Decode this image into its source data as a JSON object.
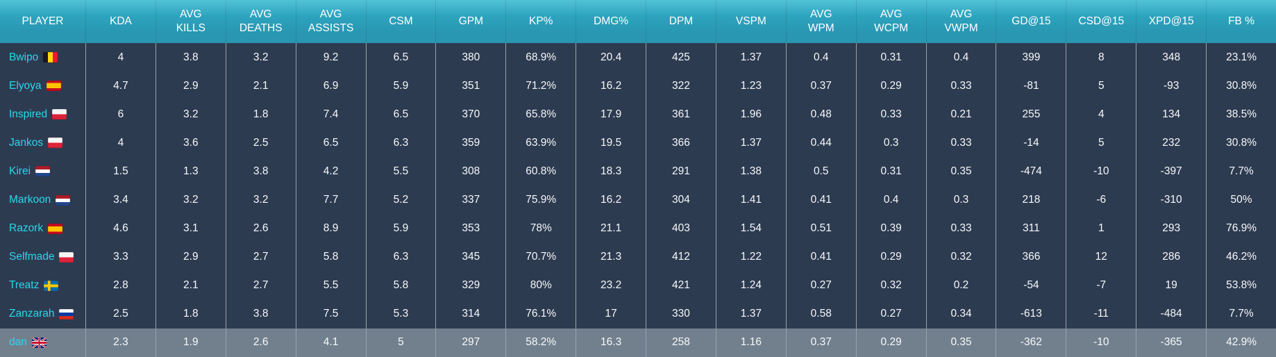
{
  "colors": {
    "header_teal_top": "#52c2d6",
    "header_teal_bottom": "#2a96b0",
    "row_background": "#2d3b51",
    "highlight_row_background": "#72808e",
    "cell_text": "#f7f9fa",
    "player_name_cyan": "#2bd7e9",
    "column_divider": "#98a1ab"
  },
  "table": {
    "columns": [
      {
        "key": "player",
        "label": "PLAYER"
      },
      {
        "key": "kda",
        "label": "KDA"
      },
      {
        "key": "avg_kills",
        "label": "AVG\nKILLS"
      },
      {
        "key": "avg_deaths",
        "label": "AVG\nDEATHS"
      },
      {
        "key": "avg_assists",
        "label": "AVG\nASSISTS"
      },
      {
        "key": "csm",
        "label": "CSM"
      },
      {
        "key": "gpm",
        "label": "GPM"
      },
      {
        "key": "kp_pct",
        "label": "KP%"
      },
      {
        "key": "dmg_pct",
        "label": "DMG%"
      },
      {
        "key": "dpm",
        "label": "DPM"
      },
      {
        "key": "vspm",
        "label": "VSPM"
      },
      {
        "key": "avg_wpm",
        "label": "AVG\nWPM"
      },
      {
        "key": "avg_wcpm",
        "label": "AVG\nWCPM"
      },
      {
        "key": "avg_vwpm",
        "label": "AVG\nVWPM"
      },
      {
        "key": "gd_at_15",
        "label": "GD@15"
      },
      {
        "key": "csd_at_15",
        "label": "CSD@15"
      },
      {
        "key": "xpd_at_15",
        "label": "XPD@15"
      },
      {
        "key": "fb_pct",
        "label": "FB %"
      }
    ],
    "rows": [
      {
        "player": "Bwipo",
        "country": "belgium",
        "highlighted": false,
        "values": [
          "4",
          "3.8",
          "3.2",
          "9.2",
          "6.5",
          "380",
          "68.9%",
          "20.4",
          "425",
          "1.37",
          "0.4",
          "0.31",
          "0.4",
          "399",
          "8",
          "348",
          "23.1%"
        ]
      },
      {
        "player": "Elyoya",
        "country": "spain",
        "highlighted": false,
        "values": [
          "4.7",
          "2.9",
          "2.1",
          "6.9",
          "5.9",
          "351",
          "71.2%",
          "16.2",
          "322",
          "1.23",
          "0.37",
          "0.29",
          "0.33",
          "-81",
          "5",
          "-93",
          "30.8%"
        ]
      },
      {
        "player": "Inspired",
        "country": "poland",
        "highlighted": false,
        "values": [
          "6",
          "3.2",
          "1.8",
          "7.4",
          "6.5",
          "370",
          "65.8%",
          "17.9",
          "361",
          "1.96",
          "0.48",
          "0.33",
          "0.21",
          "255",
          "4",
          "134",
          "38.5%"
        ]
      },
      {
        "player": "Jankos",
        "country": "poland",
        "highlighted": false,
        "values": [
          "4",
          "3.6",
          "2.5",
          "6.5",
          "6.3",
          "359",
          "63.9%",
          "19.5",
          "366",
          "1.37",
          "0.44",
          "0.3",
          "0.33",
          "-14",
          "5",
          "232",
          "30.8%"
        ]
      },
      {
        "player": "Kirei",
        "country": "netherlands",
        "highlighted": false,
        "values": [
          "1.5",
          "1.3",
          "3.8",
          "4.2",
          "5.5",
          "308",
          "60.8%",
          "18.3",
          "291",
          "1.38",
          "0.5",
          "0.31",
          "0.35",
          "-474",
          "-10",
          "-397",
          "7.7%"
        ]
      },
      {
        "player": "Markoon",
        "country": "netherlands",
        "highlighted": false,
        "values": [
          "3.4",
          "3.2",
          "3.2",
          "7.7",
          "5.2",
          "337",
          "75.9%",
          "16.2",
          "304",
          "1.41",
          "0.41",
          "0.4",
          "0.3",
          "218",
          "-6",
          "-310",
          "50%"
        ]
      },
      {
        "player": "Razork",
        "country": "spain",
        "highlighted": false,
        "values": [
          "4.6",
          "3.1",
          "2.6",
          "8.9",
          "5.9",
          "353",
          "78%",
          "21.1",
          "403",
          "1.54",
          "0.51",
          "0.39",
          "0.33",
          "311",
          "1",
          "293",
          "76.9%"
        ]
      },
      {
        "player": "Selfmade",
        "country": "poland",
        "highlighted": false,
        "values": [
          "3.3",
          "2.9",
          "2.7",
          "5.8",
          "6.3",
          "345",
          "70.7%",
          "21.3",
          "412",
          "1.22",
          "0.41",
          "0.29",
          "0.32",
          "366",
          "12",
          "286",
          "46.2%"
        ]
      },
      {
        "player": "Treatz",
        "country": "sweden",
        "highlighted": false,
        "values": [
          "2.8",
          "2.1",
          "2.7",
          "5.5",
          "5.8",
          "329",
          "80%",
          "23.2",
          "421",
          "1.24",
          "0.27",
          "0.32",
          "0.2",
          "-54",
          "-7",
          "19",
          "53.8%"
        ]
      },
      {
        "player": "Zanzarah",
        "country": "russia",
        "highlighted": false,
        "values": [
          "2.5",
          "1.8",
          "3.8",
          "7.5",
          "5.3",
          "314",
          "76.1%",
          "17",
          "330",
          "1.37",
          "0.58",
          "0.27",
          "0.34",
          "-613",
          "-11",
          "-484",
          "7.7%"
        ]
      },
      {
        "player": "dan",
        "country": "united-kingdom",
        "highlighted": true,
        "values": [
          "2.3",
          "1.9",
          "2.6",
          "4.1",
          "5",
          "297",
          "58.2%",
          "16.3",
          "258",
          "1.16",
          "0.37",
          "0.29",
          "0.35",
          "-362",
          "-10",
          "-365",
          "42.9%"
        ]
      }
    ]
  }
}
